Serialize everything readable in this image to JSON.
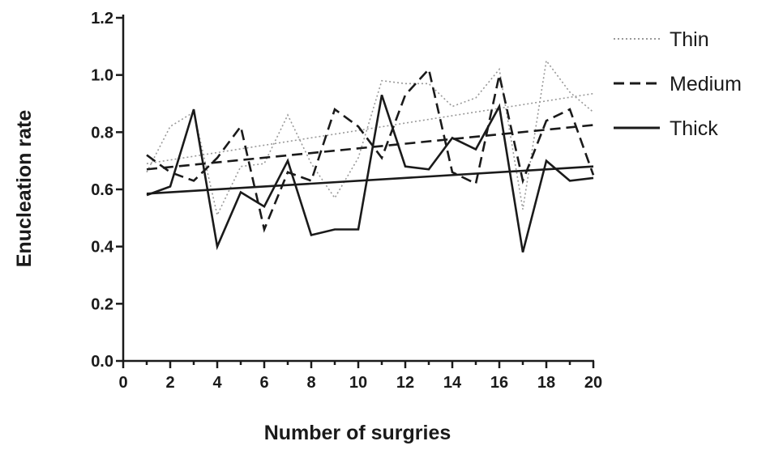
{
  "chart_data": {
    "type": "line",
    "title": "",
    "xlabel": "Number of surgries",
    "ylabel": "Enucleation rate",
    "xlim": [
      0,
      20
    ],
    "ylim": [
      0,
      1.2
    ],
    "xticks": [
      0,
      2,
      4,
      6,
      8,
      10,
      12,
      14,
      16,
      18,
      20
    ],
    "yticks": [
      "0.0",
      "0.2",
      "0.4",
      "0.6",
      "0.8",
      "1.0",
      "1.2"
    ],
    "grid": false,
    "legend_position": "top-right",
    "x": [
      1,
      2,
      3,
      4,
      5,
      6,
      7,
      8,
      9,
      10,
      11,
      12,
      13,
      14,
      15,
      16,
      17,
      18,
      19,
      20
    ],
    "series": [
      {
        "name": "Thin",
        "style": "dotted",
        "color": "#999999",
        "values": [
          0.66,
          0.82,
          0.87,
          0.51,
          0.68,
          0.69,
          0.86,
          0.69,
          0.57,
          0.71,
          0.98,
          0.97,
          0.97,
          0.89,
          0.92,
          1.02,
          0.53,
          1.05,
          0.94,
          0.87
        ],
        "trend": [
          0.69,
          0.935
        ]
      },
      {
        "name": "Medium",
        "style": "dashed",
        "color": "#1a1a1a",
        "values": [
          0.72,
          0.66,
          0.63,
          0.71,
          0.82,
          0.46,
          0.66,
          0.63,
          0.88,
          0.82,
          0.71,
          0.93,
          1.02,
          0.66,
          0.62,
          1.0,
          0.63,
          0.84,
          0.88,
          0.65
        ],
        "trend": [
          0.67,
          0.825
        ]
      },
      {
        "name": "Thick",
        "style": "solid",
        "color": "#1a1a1a",
        "values": [
          0.58,
          0.61,
          0.88,
          0.4,
          0.59,
          0.54,
          0.7,
          0.44,
          0.46,
          0.46,
          0.93,
          0.68,
          0.67,
          0.78,
          0.74,
          0.89,
          0.38,
          0.7,
          0.63,
          0.64
        ],
        "trend": [
          0.585,
          0.68
        ]
      }
    ]
  }
}
